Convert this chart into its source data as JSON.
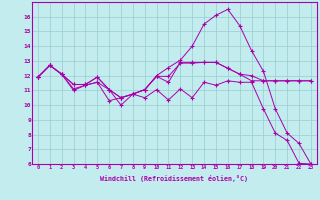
{
  "xlabel": "Windchill (Refroidissement éolien,°C)",
  "background_color": "#c2ecee",
  "line_color": "#aa00aa",
  "grid_color": "#99cccc",
  "ylim": [
    6,
    17
  ],
  "xlim": [
    -0.5,
    23.5
  ],
  "yticks": [
    6,
    7,
    8,
    9,
    10,
    11,
    12,
    13,
    14,
    15,
    16
  ],
  "xticks": [
    0,
    1,
    2,
    3,
    4,
    5,
    6,
    7,
    8,
    9,
    10,
    11,
    12,
    13,
    14,
    15,
    16,
    17,
    18,
    19,
    20,
    21,
    22,
    23
  ],
  "line1_x": [
    0,
    1,
    2,
    3,
    4,
    5,
    6,
    7,
    8,
    9,
    10,
    11,
    12,
    13,
    14,
    15,
    16,
    17,
    18,
    19,
    20,
    21,
    22,
    23
  ],
  "line1_y": [
    11.9,
    12.7,
    12.1,
    11.1,
    11.35,
    11.55,
    10.3,
    10.5,
    10.75,
    10.5,
    11.05,
    10.35,
    11.1,
    10.5,
    11.55,
    11.35,
    11.65,
    11.55,
    11.55,
    9.75,
    8.1,
    7.6,
    6.05,
    6.0
  ],
  "line2_x": [
    0,
    1,
    2,
    3,
    4,
    5,
    6,
    7,
    8,
    9,
    10,
    11,
    12,
    13,
    14,
    15,
    16,
    17,
    18,
    19,
    20,
    21,
    22,
    23
  ],
  "line2_y": [
    11.9,
    12.7,
    12.1,
    11.4,
    11.4,
    11.9,
    11.05,
    10.5,
    10.75,
    11.05,
    11.95,
    11.95,
    12.85,
    12.85,
    12.9,
    12.9,
    12.5,
    12.1,
    12.0,
    11.65,
    11.65,
    11.65,
    11.65,
    11.65
  ],
  "line3_x": [
    0,
    1,
    2,
    3,
    4,
    5,
    6,
    7,
    8,
    9,
    10,
    11,
    12,
    13,
    14,
    15,
    16,
    17,
    18,
    19,
    20,
    21,
    22,
    23
  ],
  "line3_y": [
    11.9,
    12.7,
    12.1,
    11.4,
    11.4,
    11.9,
    11.05,
    10.5,
    10.75,
    11.05,
    12.0,
    12.55,
    13.05,
    14.0,
    15.5,
    16.1,
    16.5,
    15.4,
    13.7,
    12.3,
    9.75,
    8.1,
    7.4,
    6.0
  ],
  "line4_x": [
    0,
    1,
    2,
    3,
    4,
    5,
    6,
    7,
    8,
    9,
    10,
    11,
    12,
    13,
    14,
    15,
    16,
    17,
    18,
    19,
    20,
    21,
    22,
    23
  ],
  "line4_y": [
    11.9,
    12.7,
    12.1,
    11.0,
    11.35,
    11.55,
    11.05,
    10.0,
    10.75,
    11.05,
    11.95,
    11.55,
    12.9,
    12.9,
    12.9,
    12.9,
    12.5,
    12.1,
    11.65,
    11.65,
    11.65,
    11.65,
    11.65,
    11.65
  ]
}
